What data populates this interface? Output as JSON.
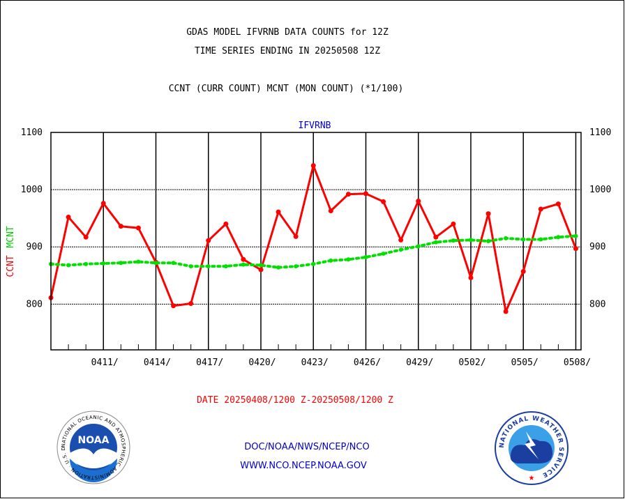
{
  "header": {
    "title_line1": "GDAS MODEL IFVRNB DATA COUNTS for 12Z",
    "title_line2": "TIME SERIES ENDING IN 20250508 12Z",
    "subtitle": "CCNT (CURR COUNT) MCNT (MON COUNT) (*1/100)"
  },
  "footer": {
    "date_range": "DATE 20250408/1200 Z-20250508/1200 Z",
    "org_path": "DOC/NOAA/NWS/NCEP/NCO",
    "website": "WWW.NCO.NCEP.NOAA.GOV",
    "noaa_logo_text": "NOAA",
    "noaa_ring_text": "NATIONAL OCEANIC AND ATMOSPHERIC ADMINISTRATION · U.S. DEPARTMENT OF COMMERCE",
    "nws_ring_text": "NATIONAL WEATHER SERVICE"
  },
  "chart_data": {
    "type": "line",
    "plot_label": "IFVRNB",
    "ylabel_series": [
      "CCNT",
      "MCNT"
    ],
    "ylim": [
      720,
      1100
    ],
    "yticks": [
      800,
      900,
      1000,
      1100
    ],
    "y_right_axis": true,
    "grid": true,
    "x_start": "0408",
    "x_end": "0508",
    "x_tick_labels": [
      "0411/",
      "0414/",
      "0417/",
      "0420/",
      "0423/",
      "0426/",
      "0429/",
      "0502/",
      "0505/",
      "0508/"
    ],
    "x_tick_days": [
      3,
      6,
      9,
      12,
      15,
      18,
      21,
      24,
      27,
      30
    ],
    "series": [
      {
        "name": "CCNT",
        "color": "#ff0000",
        "style": "solid",
        "x": [
          0,
          1,
          2,
          3,
          4,
          5,
          6,
          7,
          8,
          9,
          10,
          11,
          12,
          13,
          14,
          15,
          16,
          17,
          18,
          19,
          20,
          21,
          22,
          23,
          24,
          25,
          26,
          27,
          28,
          29,
          30
        ],
        "values": [
          811,
          952,
          917,
          976,
          936,
          933,
          873,
          797,
          801,
          911,
          940,
          878,
          860,
          961,
          918,
          1042,
          963,
          992,
          993,
          979,
          912,
          980,
          917,
          940,
          846,
          958,
          787,
          857,
          966,
          975,
          897
        ]
      },
      {
        "name": "MCNT",
        "color": "#00e000",
        "style": "dotted",
        "x": [
          0,
          1,
          2,
          3,
          4,
          5,
          6,
          7,
          8,
          9,
          10,
          11,
          12,
          13,
          14,
          15,
          16,
          17,
          18,
          19,
          20,
          21,
          22,
          23,
          24,
          25,
          26,
          27,
          28,
          29,
          30
        ],
        "values": [
          870,
          868,
          870,
          871,
          872,
          874,
          872,
          872,
          866,
          866,
          866,
          869,
          868,
          864,
          866,
          870,
          876,
          878,
          882,
          888,
          895,
          901,
          908,
          911,
          912,
          910,
          915,
          913,
          913,
          917,
          919
        ]
      }
    ]
  }
}
